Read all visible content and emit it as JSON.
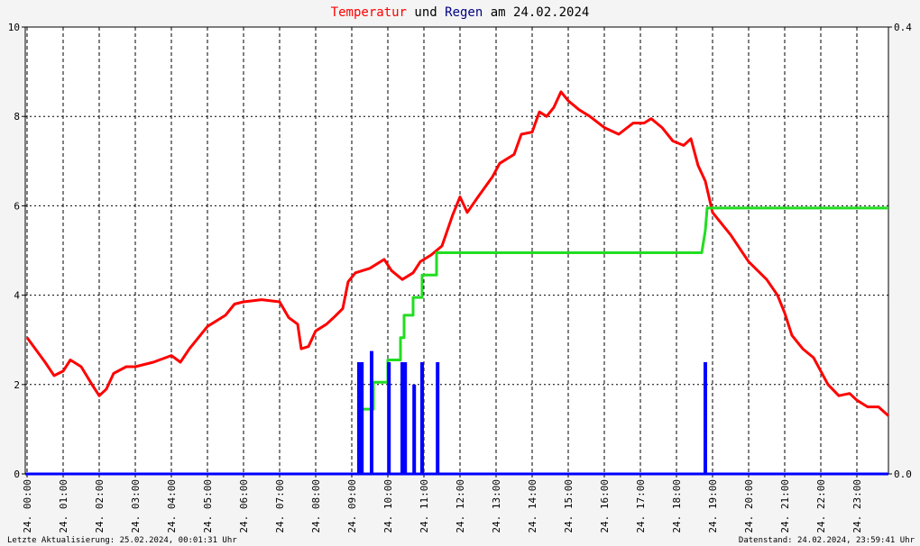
{
  "chart_data": {
    "type": "line",
    "title_parts": [
      {
        "text": "Temperatur",
        "color": "#ff0000"
      },
      {
        "text": "und",
        "color": "#000000"
      },
      {
        "text": "Regen",
        "color": "#000080"
      },
      {
        "text": "am 24.02.2024",
        "color": "#000000"
      }
    ],
    "footer_left": "Letzte Aktualisierung: 25.02.2024, 00:01:31 Uhr",
    "footer_right": "Datenstand: 24.02.2024, 23:59:41 Uhr",
    "xlim": [
      -0.05,
      23.875
    ],
    "xticks": [
      {
        "value": 0,
        "label": "24. 00:00"
      },
      {
        "value": 1,
        "label": "24. 01:00"
      },
      {
        "value": 2,
        "label": "24. 02:00"
      },
      {
        "value": 3,
        "label": "24. 03:00"
      },
      {
        "value": 4,
        "label": "24. 04:00"
      },
      {
        "value": 5,
        "label": "24. 05:00"
      },
      {
        "value": 6,
        "label": "24. 06:00"
      },
      {
        "value": 7,
        "label": "24. 07:00"
      },
      {
        "value": 8,
        "label": "24. 08:00"
      },
      {
        "value": 9,
        "label": "24. 09:00"
      },
      {
        "value": 10,
        "label": "24. 10:00"
      },
      {
        "value": 11,
        "label": "24. 11:00"
      },
      {
        "value": 12,
        "label": "24. 12:00"
      },
      {
        "value": 13,
        "label": "24. 13:00"
      },
      {
        "value": 14,
        "label": "24. 14:00"
      },
      {
        "value": 15,
        "label": "24. 15:00"
      },
      {
        "value": 16,
        "label": "24. 16:00"
      },
      {
        "value": 17,
        "label": "24. 17:00"
      },
      {
        "value": 18,
        "label": "24. 18:00"
      },
      {
        "value": 19,
        "label": "24. 19:00"
      },
      {
        "value": 20,
        "label": "24. 20:00"
      },
      {
        "value": 21,
        "label": "24. 21:00"
      },
      {
        "value": 22,
        "label": "24. 22:00"
      },
      {
        "value": 23,
        "label": "24. 23:00"
      }
    ],
    "ylim": [
      0,
      10
    ],
    "yticks": [
      0,
      2,
      4,
      6,
      8,
      10
    ],
    "y2lim": [
      0,
      0.4
    ],
    "y2ticks": [
      {
        "value": 0,
        "label": "0.0"
      },
      0.4
    ],
    "grid": true,
    "series": [
      {
        "kind": "line",
        "color": "#ff0000",
        "x": [
          0,
          0.5,
          0.75,
          1.0,
          1.2,
          1.5,
          1.8,
          2.0,
          2.2,
          2.4,
          2.75,
          3.0,
          3.5,
          4.0,
          4.25,
          4.5,
          5.0,
          5.5,
          5.75,
          6.0,
          6.5,
          7.0,
          7.25,
          7.5,
          7.6,
          7.8,
          8.0,
          8.3,
          8.5,
          8.75,
          8.9,
          9.1,
          9.5,
          9.9,
          10.1,
          10.4,
          10.7,
          10.9,
          11.2,
          11.5,
          11.8,
          12.0,
          12.2,
          12.5,
          12.9,
          13.1,
          13.5,
          13.7,
          14.0,
          14.2,
          14.4,
          14.6,
          14.8,
          15.0,
          15.3,
          15.6,
          16.0,
          16.4,
          16.8,
          17.1,
          17.3,
          17.6,
          17.9,
          18.2,
          18.4,
          18.6,
          18.8,
          19.0,
          19.5,
          20.0,
          20.5,
          20.8,
          21.0,
          21.2,
          21.5,
          21.8,
          22.0,
          22.2,
          22.5,
          22.8,
          23.0,
          23.3,
          23.6,
          23.875
        ],
        "values": [
          3.05,
          2.5,
          2.2,
          2.3,
          2.55,
          2.4,
          2.0,
          1.75,
          1.9,
          2.25,
          2.4,
          2.4,
          2.5,
          2.65,
          2.5,
          2.8,
          3.3,
          3.55,
          3.8,
          3.85,
          3.9,
          3.85,
          3.5,
          3.35,
          2.8,
          2.85,
          3.2,
          3.35,
          3.5,
          3.7,
          4.3,
          4.5,
          4.6,
          4.8,
          4.55,
          4.35,
          4.5,
          4.75,
          4.9,
          5.1,
          5.8,
          6.2,
          5.85,
          6.2,
          6.65,
          6.95,
          7.15,
          7.6,
          7.65,
          8.1,
          8.0,
          8.2,
          8.55,
          8.35,
          8.15,
          8.0,
          7.75,
          7.6,
          7.85,
          7.85,
          7.95,
          7.75,
          7.45,
          7.35,
          7.5,
          6.9,
          6.55,
          5.85,
          5.35,
          4.75,
          4.35,
          4.0,
          3.6,
          3.1,
          2.8,
          2.6,
          2.3,
          2.0,
          1.75,
          1.8,
          1.65,
          1.5,
          1.5,
          1.3
        ]
      },
      {
        "kind": "line",
        "axis": "y2",
        "color": "#22dd22",
        "x": [
          9.3,
          9.6,
          9.6,
          10.0,
          10.0,
          10.35,
          10.35,
          10.45,
          10.45,
          10.7,
          10.7,
          10.95,
          10.95,
          11.35,
          11.35,
          18.7,
          18.8,
          18.85,
          23.875
        ],
        "values": [
          0.058,
          0.058,
          0.082,
          0.082,
          0.102,
          0.102,
          0.122,
          0.122,
          0.142,
          0.142,
          0.158,
          0.158,
          0.178,
          0.178,
          0.198,
          0.198,
          0.218,
          0.238,
          0.238
        ]
      },
      {
        "kind": "bar",
        "axis": "y2",
        "color": "#0000ff",
        "x": [
          9.2,
          9.28,
          9.55,
          10.03,
          10.4,
          10.48,
          10.73,
          10.95,
          11.38,
          18.8
        ],
        "values": [
          0.1,
          0.1,
          0.11,
          0.1,
          0.1,
          0.1,
          0.08,
          0.1,
          0.1,
          0.1
        ]
      }
    ]
  }
}
